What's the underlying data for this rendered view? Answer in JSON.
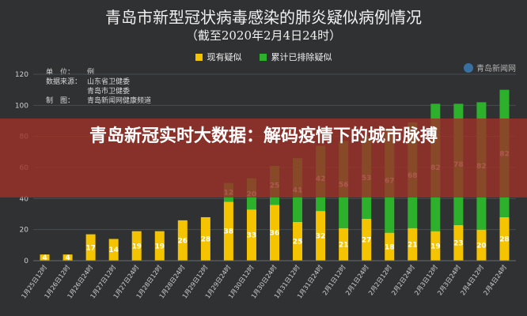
{
  "chart_data": {
    "type": "bar",
    "stacked": true,
    "title": "青岛市新型冠状病毒感染的肺炎疑似病例情况",
    "subtitle": "（截至2020年2月4日24时）",
    "categories": [
      "1月25日12时",
      "1月26日12时",
      "1月26日24时",
      "1月27日12时",
      "1月27日24时",
      "1月28日12时",
      "1月28日24时",
      "1月29日12时",
      "1月29日24时",
      "1月30日12时",
      "1月30日24时",
      "1月31日12时",
      "1月31日24时",
      "2月1日12时",
      "2月1日24时",
      "2月2日12时",
      "2月2日24时",
      "2月3日12时",
      "2月3日24时",
      "2月4日12时",
      "2月4日24时"
    ],
    "series": [
      {
        "name": "现有疑似",
        "color": "#f5c400",
        "values": [
          4,
          4,
          17,
          14,
          19,
          19,
          26,
          28,
          38,
          33,
          36,
          25,
          32,
          21,
          27,
          18,
          21,
          19,
          23,
          20,
          28
        ]
      },
      {
        "name": "累计已排除疑似",
        "color": "#2db02b",
        "values": [
          0,
          0,
          0,
          0,
          0,
          0,
          0,
          0,
          12,
          20,
          25,
          41,
          42,
          56,
          53,
          67,
          68,
          82,
          78,
          82,
          82
        ]
      }
    ],
    "ylim": [
      0,
      120
    ],
    "yticks": [
      0,
      20,
      40,
      60,
      80,
      100,
      120
    ],
    "legend_position": "top-center",
    "grid": true
  },
  "info": [
    {
      "k": "单　位：",
      "v": "例"
    },
    {
      "k": "数据来源：",
      "v": "山东省卫健委"
    },
    {
      "k": "",
      "v": "青岛市卫健委"
    },
    {
      "k": "制　图：",
      "v": "青岛新闻网健康频道"
    }
  ],
  "watermark": "青岛新闻网",
  "banner": "青岛新冠实时大数据：解码疫情下的城市脉搏"
}
